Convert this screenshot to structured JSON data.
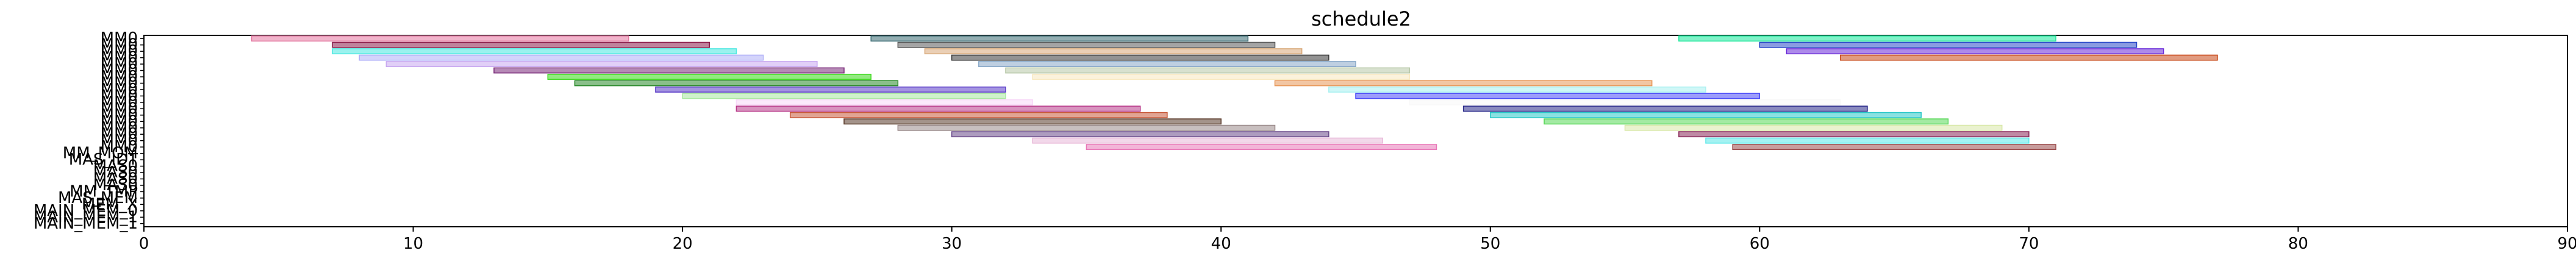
{
  "chart_data": {
    "type": "bar",
    "orientation": "horizontal-gantt",
    "title": "schedule2",
    "xlabel": "",
    "ylabel": "",
    "xlim": [
      0,
      90
    ],
    "x_ticks": [
      0,
      10,
      20,
      30,
      40,
      50,
      60,
      70,
      80,
      90
    ],
    "grid": false,
    "legend": "none",
    "rows": [
      "MM0",
      "MM0",
      "MM0",
      "MM0",
      "MM0",
      "MM0",
      "MM0",
      "MM0",
      "MM0",
      "MM0",
      "MM0",
      "MM0",
      "MM0",
      "MM0",
      "MM0",
      "MM0",
      "MM0",
      "MM0",
      "MM_MOM",
      "MAS_IDT",
      "MAS0",
      "MAS0",
      "MAS0",
      "MAS0",
      "MM_TMP",
      "MAS_MEM",
      "MEM_X",
      "MAIN_MEM_0",
      "MAIN_MEM_1",
      "MAIN_MEM_1"
    ],
    "series": [
      {
        "row": 0,
        "start": 4,
        "end": 18,
        "color": "#e377a0"
      },
      {
        "row": 0,
        "start": 27,
        "end": 41,
        "color": "#3a6b72"
      },
      {
        "row": 0,
        "start": 57,
        "end": 71,
        "color": "#19e89a"
      },
      {
        "row": 1,
        "start": 7,
        "end": 21,
        "color": "#8b1c4a"
      },
      {
        "row": 1,
        "start": 28,
        "end": 42,
        "color": "#5a5a5a"
      },
      {
        "row": 1,
        "start": 60,
        "end": 74,
        "color": "#2a48c8"
      },
      {
        "row": 2,
        "start": 7,
        "end": 22,
        "color": "#48e8e0"
      },
      {
        "row": 2,
        "start": 29,
        "end": 43,
        "color": "#d8a878"
      },
      {
        "row": 2,
        "start": 61,
        "end": 75,
        "color": "#6a2ad8"
      },
      {
        "row": 3,
        "start": 8,
        "end": 23,
        "color": "#b0b0f8"
      },
      {
        "row": 3,
        "start": 30,
        "end": 44,
        "color": "#3a3a3a"
      },
      {
        "row": 3,
        "start": 63,
        "end": 77,
        "color": "#c84818"
      },
      {
        "row": 4,
        "start": 9,
        "end": 25,
        "color": "#c8a8f0"
      },
      {
        "row": 4,
        "start": 31,
        "end": 45,
        "color": "#88a8c8"
      },
      {
        "row": 5,
        "start": 13,
        "end": 26,
        "color": "#7a2a7a"
      },
      {
        "row": 5,
        "start": 32,
        "end": 47,
        "color": "#b8c8a8"
      },
      {
        "row": 6,
        "start": 15,
        "end": 27,
        "color": "#38d818"
      },
      {
        "row": 6,
        "start": 33,
        "end": 47,
        "color": "#f8e8c0"
      },
      {
        "row": 7,
        "start": 16,
        "end": 28,
        "color": "#2a8a2a"
      },
      {
        "row": 7,
        "start": 42,
        "end": 56,
        "color": "#e89858"
      },
      {
        "row": 8,
        "start": 19,
        "end": 32,
        "color": "#5a3ac8"
      },
      {
        "row": 8,
        "start": 44,
        "end": 58,
        "color": "#a8f0f0"
      },
      {
        "row": 9,
        "start": 20,
        "end": 32,
        "color": "#a8e8a0"
      },
      {
        "row": 9,
        "start": 45,
        "end": 60,
        "color": "#4a4af8"
      },
      {
        "row": 10,
        "start": 22,
        "end": 33,
        "color": "#f8d8f8"
      },
      {
        "row": 10,
        "start": 47,
        "end": 63,
        "color": "#f8f8f8"
      },
      {
        "row": 11,
        "start": 22,
        "end": 37,
        "color": "#b83a8a"
      },
      {
        "row": 11,
        "start": 49,
        "end": 64,
        "color": "#2a2a8a"
      },
      {
        "row": 12,
        "start": 24,
        "end": 38,
        "color": "#c85a3a"
      },
      {
        "row": 12,
        "start": 50,
        "end": 66,
        "color": "#2ac8c8"
      },
      {
        "row": 13,
        "start": 26,
        "end": 40,
        "color": "#5a3a2a"
      },
      {
        "row": 13,
        "start": 52,
        "end": 67,
        "color": "#58d858"
      },
      {
        "row": 14,
        "start": 28,
        "end": 42,
        "color": "#9a8a8a"
      },
      {
        "row": 14,
        "start": 55,
        "end": 69,
        "color": "#d8e8a8"
      },
      {
        "row": 15,
        "start": 30,
        "end": 44,
        "color": "#6a4a8a"
      },
      {
        "row": 15,
        "start": 57,
        "end": 70,
        "color": "#8a2a5a"
      },
      {
        "row": 16,
        "start": 33,
        "end": 46,
        "color": "#e8b8d8"
      },
      {
        "row": 16,
        "start": 58,
        "end": 70,
        "color": "#5ae8e8"
      },
      {
        "row": 17,
        "start": 35,
        "end": 48,
        "color": "#e878b8"
      },
      {
        "row": 17,
        "start": 59,
        "end": 71,
        "color": "#9a4a4a"
      }
    ]
  }
}
